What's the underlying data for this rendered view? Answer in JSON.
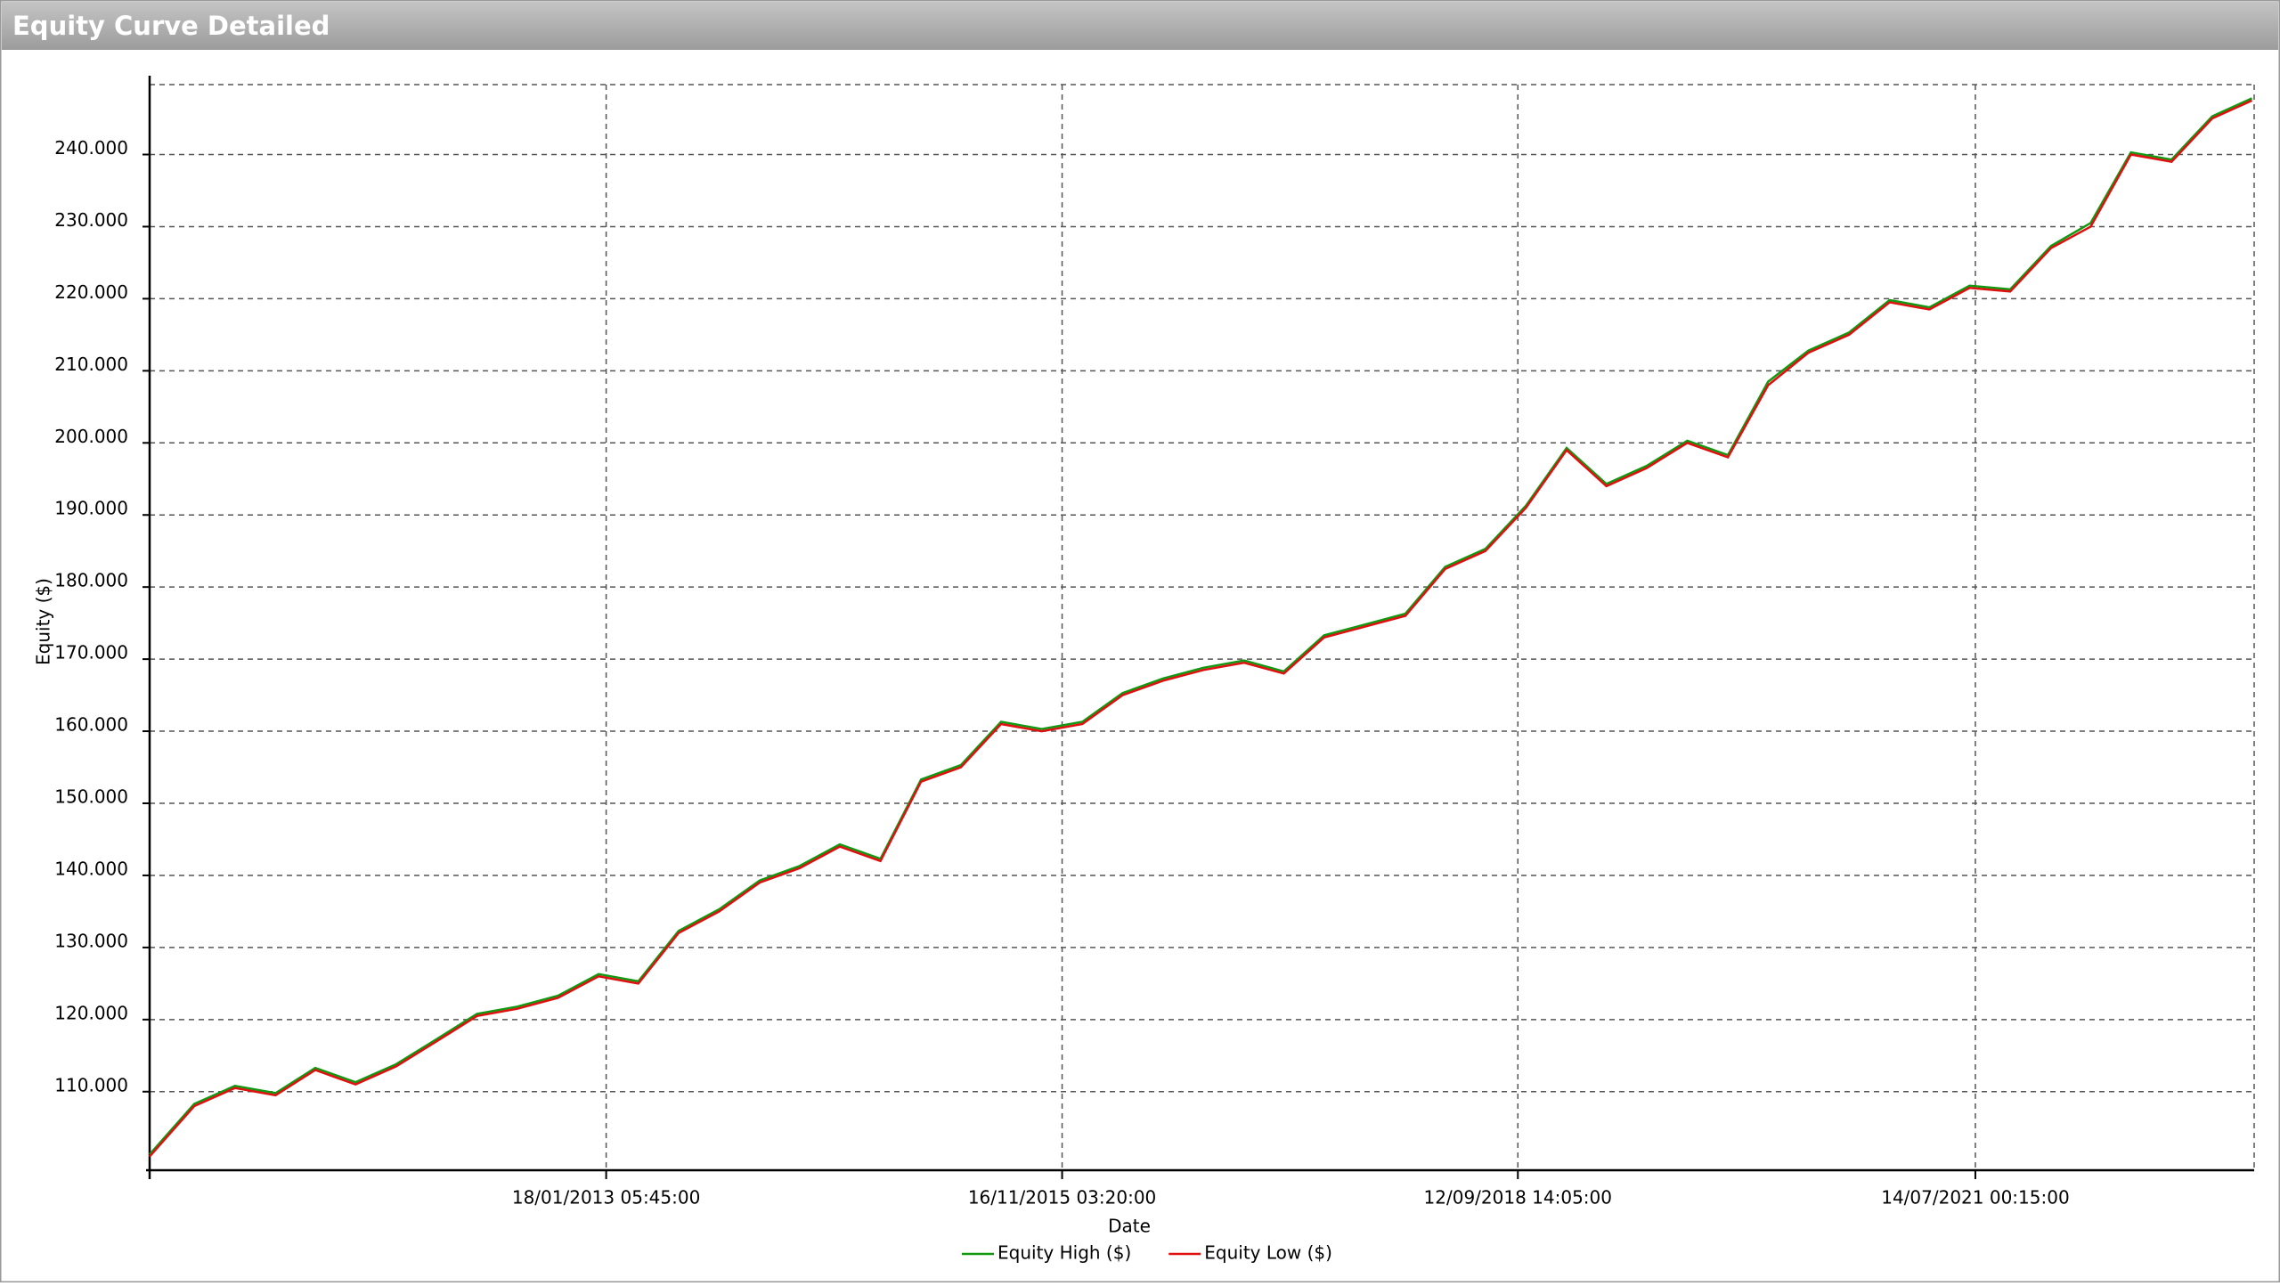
{
  "chart_data": {
    "type": "line",
    "title": "Equity Curve Detailed",
    "x_label": "Date",
    "y_label": "Equity ($)",
    "x": [
      "2010-03-22",
      "2010-07-01",
      "2010-10-01",
      "2011-01-01",
      "2011-04-01",
      "2011-07-01",
      "2011-10-01",
      "2012-01-01",
      "2012-04-01",
      "2012-07-01",
      "2012-10-01",
      "2013-01-01",
      "2013-04-01",
      "2013-07-01",
      "2013-10-01",
      "2014-01-01",
      "2014-04-01",
      "2014-07-01",
      "2014-10-01",
      "2015-01-01",
      "2015-04-01",
      "2015-07-01",
      "2015-10-01",
      "2016-01-01",
      "2016-04-01",
      "2016-07-01",
      "2016-10-01",
      "2017-01-01",
      "2017-04-01",
      "2017-07-01",
      "2017-10-01",
      "2018-01-01",
      "2018-04-01",
      "2018-07-01",
      "2018-10-01",
      "2019-01-01",
      "2019-04-01",
      "2019-07-01",
      "2019-10-01",
      "2020-01-01",
      "2020-04-01",
      "2020-07-01",
      "2020-10-01",
      "2021-01-01",
      "2021-04-01",
      "2021-07-01",
      "2021-10-01",
      "2022-01-01",
      "2022-04-01",
      "2022-07-01",
      "2022-10-01",
      "2023-01-01",
      "2023-04-01"
    ],
    "series": [
      {
        "name": "Equity High ($)",
        "color": "#119911",
        "values": [
          101300,
          108300,
          110800,
          109800,
          113300,
          111300,
          113800,
          117300,
          120800,
          121800,
          123300,
          126300,
          125300,
          132300,
          135300,
          139300,
          141300,
          144300,
          142300,
          153300,
          155300,
          161300,
          160300,
          161300,
          165300,
          167300,
          168800,
          169800,
          168300,
          173300,
          174800,
          176300,
          182800,
          185300,
          191300,
          199300,
          194300,
          196800,
          200300,
          198300,
          208500,
          212800,
          215300,
          219800,
          218800,
          221800,
          221300,
          227300,
          230500,
          240300,
          239300,
          245300,
          247800
        ]
      },
      {
        "name": "Equity Low ($)",
        "color": "#e01010",
        "values": [
          101000,
          108000,
          110500,
          109500,
          113000,
          111000,
          113500,
          117000,
          120500,
          121500,
          123000,
          126000,
          125000,
          132000,
          135000,
          139000,
          141000,
          144000,
          142000,
          153000,
          155000,
          161000,
          160000,
          161000,
          165000,
          167000,
          168500,
          169500,
          168000,
          173000,
          174500,
          176000,
          182500,
          185000,
          191000,
          199000,
          194000,
          196500,
          200000,
          198000,
          208000,
          212500,
          215000,
          219500,
          218500,
          221500,
          221000,
          227000,
          230000,
          240000,
          239000,
          245000,
          247500
        ]
      }
    ],
    "xlim": [
      "2010-03-22T00:00",
      "2023-04-06T00:00"
    ],
    "xticks": [
      {
        "value": "2013-01-18T05:45",
        "label": "18/01/2013 05:45:00"
      },
      {
        "value": "2015-11-16T03:20",
        "label": "16/11/2015 03:20:00"
      },
      {
        "value": "2018-09-12T14:05",
        "label": "12/09/2018 14:05:00"
      },
      {
        "value": "2021-07-14T00:15",
        "label": "14/07/2021 00:15:00"
      }
    ],
    "ylim": [
      99100,
      249700
    ],
    "yticks": [
      {
        "value": 110000,
        "label": "110.000"
      },
      {
        "value": 120000,
        "label": "120.000"
      },
      {
        "value": 130000,
        "label": "130.000"
      },
      {
        "value": 140000,
        "label": "140.000"
      },
      {
        "value": 150000,
        "label": "150.000"
      },
      {
        "value": 160000,
        "label": "160.000"
      },
      {
        "value": 170000,
        "label": "170.000"
      },
      {
        "value": 180000,
        "label": "180.000"
      },
      {
        "value": 190000,
        "label": "190.000"
      },
      {
        "value": 200000,
        "label": "200.000"
      },
      {
        "value": 210000,
        "label": "210.000"
      },
      {
        "value": 220000,
        "label": "220.000"
      },
      {
        "value": 230000,
        "label": "230.000"
      },
      {
        "value": 240000,
        "label": "240.000"
      }
    ],
    "grid": true,
    "legend": "bottom"
  }
}
